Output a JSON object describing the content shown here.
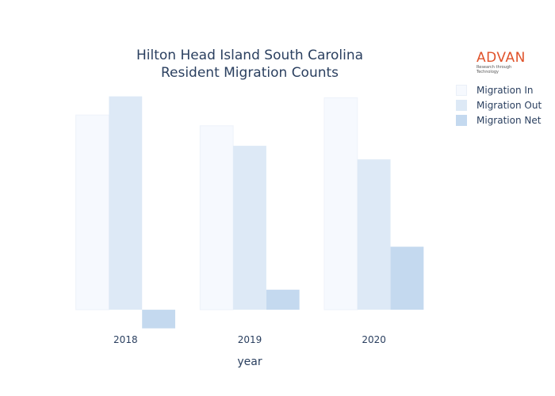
{
  "chart_data": {
    "type": "bar",
    "title_lines": [
      "Hilton Head Island South Carolina",
      "Resident Migration Counts"
    ],
    "xlabel": "year",
    "ylabel": "",
    "categories": [
      "2018",
      "2019",
      "2020"
    ],
    "series": [
      {
        "name": "Migration In",
        "values": [
          2720,
          2570,
          2960
        ],
        "color": "#f6f9fe"
      },
      {
        "name": "Migration Out",
        "values": [
          2980,
          2290,
          2100
        ],
        "color": "#dde9f6"
      },
      {
        "name": "Migration Net",
        "values": [
          -260,
          280,
          880
        ],
        "color": "#c4d9ef"
      }
    ],
    "ylim": [
      -320,
      3220
    ],
    "grid": false,
    "legend_position": "right"
  },
  "logo": {
    "word": "ADVAN",
    "tagline": "Research through Technology"
  }
}
